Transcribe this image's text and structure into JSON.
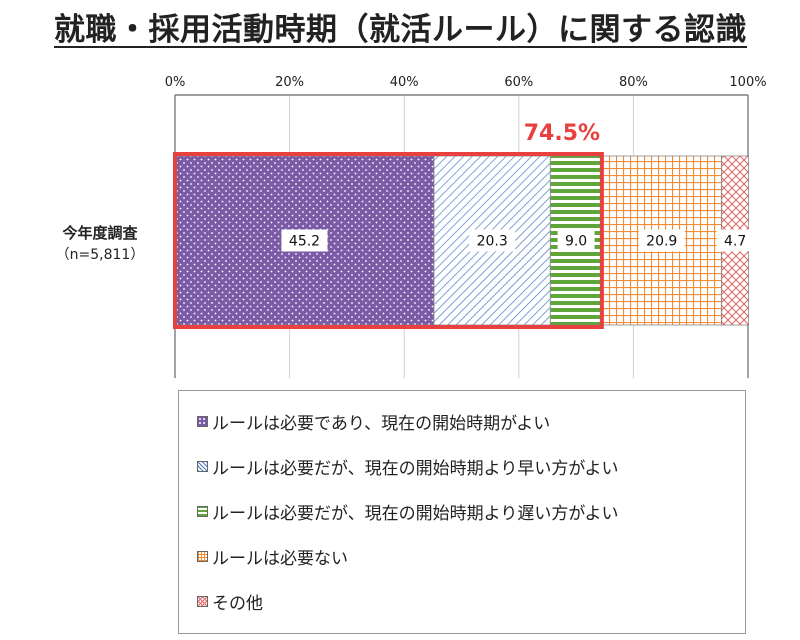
{
  "title": "就職・採用活動時期（就活ルール）に関する認識",
  "chart_data": {
    "type": "bar",
    "orientation": "horizontal",
    "stacked": true,
    "percent_axis": true,
    "xlim": [
      0,
      100
    ],
    "x_ticks": [
      "0%",
      "20%",
      "40%",
      "60%",
      "80%",
      "100%"
    ],
    "grid": true,
    "categories": [
      "今年度調査"
    ],
    "category_sublabels": [
      "（n=5,811）"
    ],
    "series": [
      {
        "name": "ルールは必要であり、現在の開始時期がよい",
        "values": [
          45.2
        ],
        "label": "45.2",
        "color": "#7b5aa6",
        "pattern": "dots"
      },
      {
        "name": "ルールは必要だが、現在の開始時期より早い方がよい",
        "values": [
          20.3
        ],
        "label": "20.3",
        "color": "#4f78c4",
        "pattern": "diagonal"
      },
      {
        "name": "ルールは必要だが、現在の開始時期より遅い方がよい",
        "values": [
          9.0
        ],
        "label": "9.0",
        "color": "#5fa53a",
        "pattern": "horizontal-stripes"
      },
      {
        "name": "ルールは必要ない",
        "values": [
          20.9
        ],
        "label": "20.9",
        "color": "#f08a33",
        "pattern": "grid"
      },
      {
        "name": "その他",
        "values": [
          4.7
        ],
        "label": "4.7",
        "color": "#e06666",
        "pattern": "crosshatch"
      }
    ],
    "highlight": {
      "label": "74.5%",
      "value": 74.5,
      "color": "#e8403f"
    },
    "legend_position": "bottom"
  }
}
